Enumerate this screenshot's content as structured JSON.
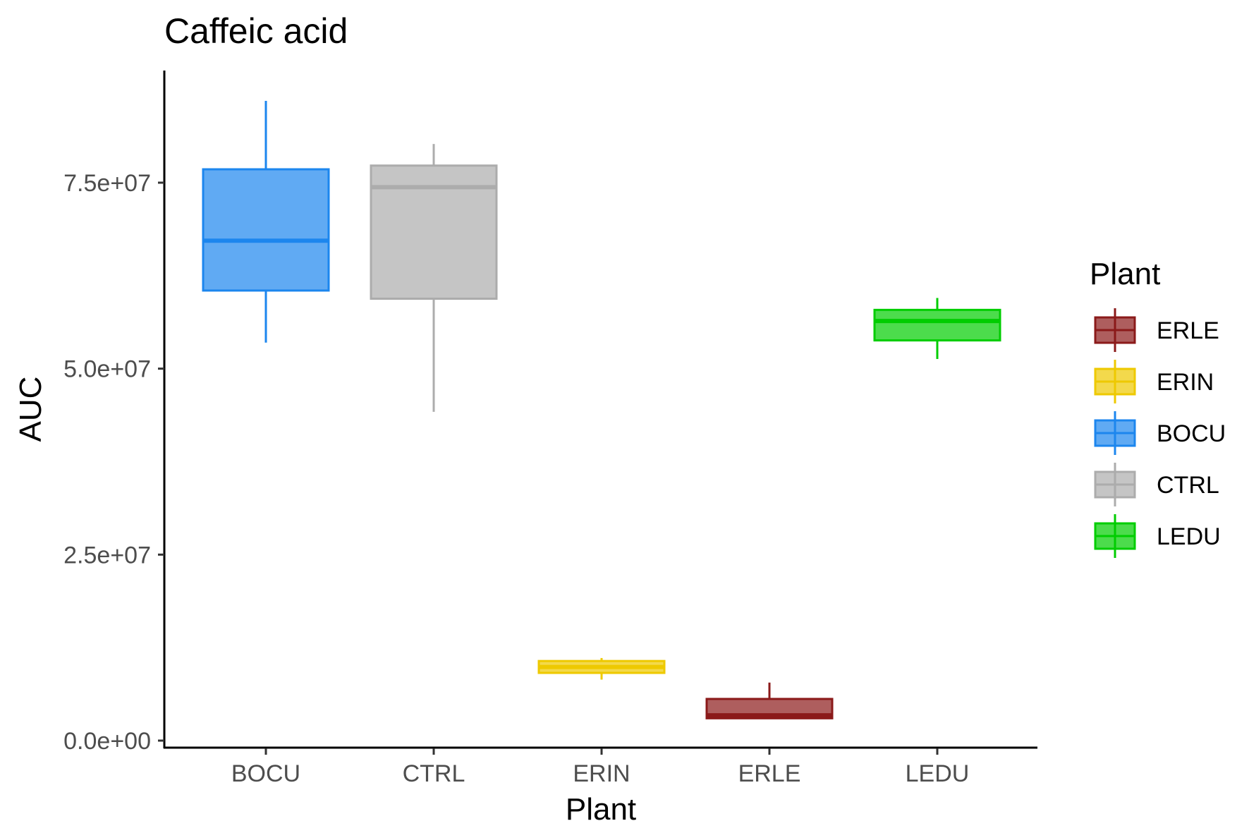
{
  "chart_data": {
    "type": "boxplot",
    "title": "Caffeic acid",
    "xlabel": "Plant",
    "ylabel": "AUC",
    "ylim": [
      0,
      90000000
    ],
    "yticks": [
      {
        "value": 0,
        "label": "0.0e+00"
      },
      {
        "value": 25000000,
        "label": "2.5e+07"
      },
      {
        "value": 50000000,
        "label": "5.0e+07"
      },
      {
        "value": 75000000,
        "label": "7.5e+07"
      }
    ],
    "categories": [
      "BOCU",
      "CTRL",
      "ERIN",
      "ERLE",
      "LEDU"
    ],
    "boxes": [
      {
        "category": "BOCU",
        "whisker_low": 53500000,
        "q1": 60500000,
        "median": 67200000,
        "q3": 76800000,
        "whisker_high": 86000000,
        "color": "#1c86ee"
      },
      {
        "category": "CTRL",
        "whisker_low": 44200000,
        "q1": 59400000,
        "median": 74400000,
        "q3": 77300000,
        "whisker_high": 80200000,
        "color": "#acacac"
      },
      {
        "category": "ERIN",
        "whisker_low": 8200000,
        "q1": 9100000,
        "median": 9900000,
        "q3": 10700000,
        "whisker_high": 11100000,
        "color": "#eec900"
      },
      {
        "category": "ERLE",
        "whisker_low": 3000000,
        "q1": 3000000,
        "median": 3400000,
        "q3": 5600000,
        "whisker_high": 7800000,
        "color": "#8b1a1a"
      },
      {
        "category": "LEDU",
        "whisker_low": 51300000,
        "q1": 53800000,
        "median": 56400000,
        "q3": 57900000,
        "whisker_high": 59500000,
        "color": "#00cd00"
      }
    ],
    "grid": false,
    "legend": {
      "title": "Plant",
      "placement": "right",
      "items": [
        {
          "label": "ERLE",
          "color": "#8b1a1a"
        },
        {
          "label": "ERIN",
          "color": "#eec900"
        },
        {
          "label": "BOCU",
          "color": "#1c86ee"
        },
        {
          "label": "CTRL",
          "color": "#acacac"
        },
        {
          "label": "LEDU",
          "color": "#00cd00"
        }
      ]
    }
  }
}
